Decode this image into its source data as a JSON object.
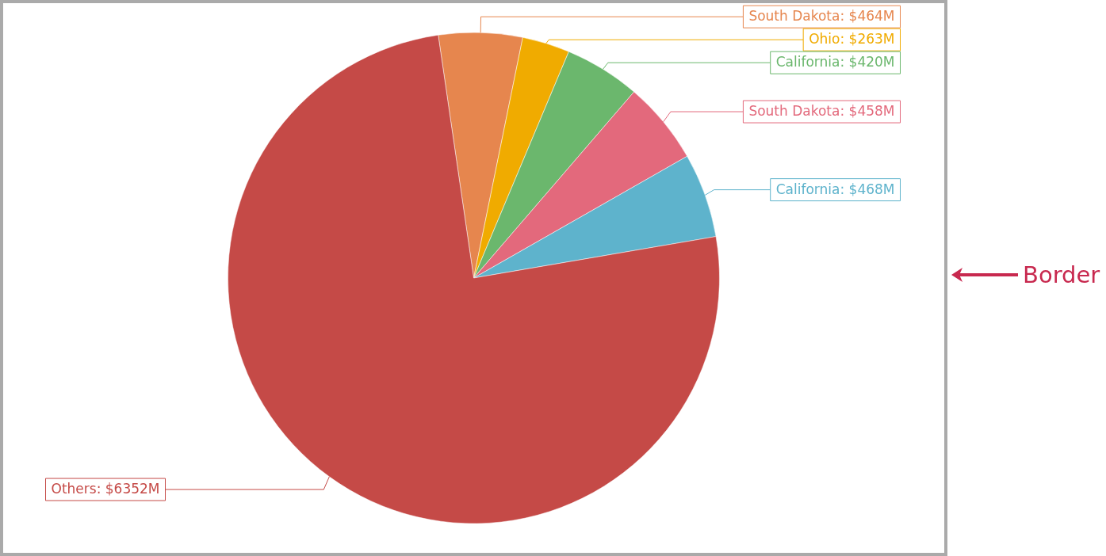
{
  "chart_data": {
    "type": "pie",
    "categories": [
      "South Dakota",
      "Ohio",
      "California",
      "South Dakota",
      "California",
      "Others"
    ],
    "values": [
      464,
      263,
      420,
      458,
      468,
      6352
    ],
    "colors": [
      "#e6864e",
      "#f0ab00",
      "#6bb76d",
      "#e3697c",
      "#5eb3cc",
      "#c54a47"
    ],
    "value_labels": [
      "$464M",
      "$263M",
      "$420M",
      "$458M",
      "$468M",
      "$6352M"
    ],
    "annotations": [
      "Border"
    ]
  }
}
